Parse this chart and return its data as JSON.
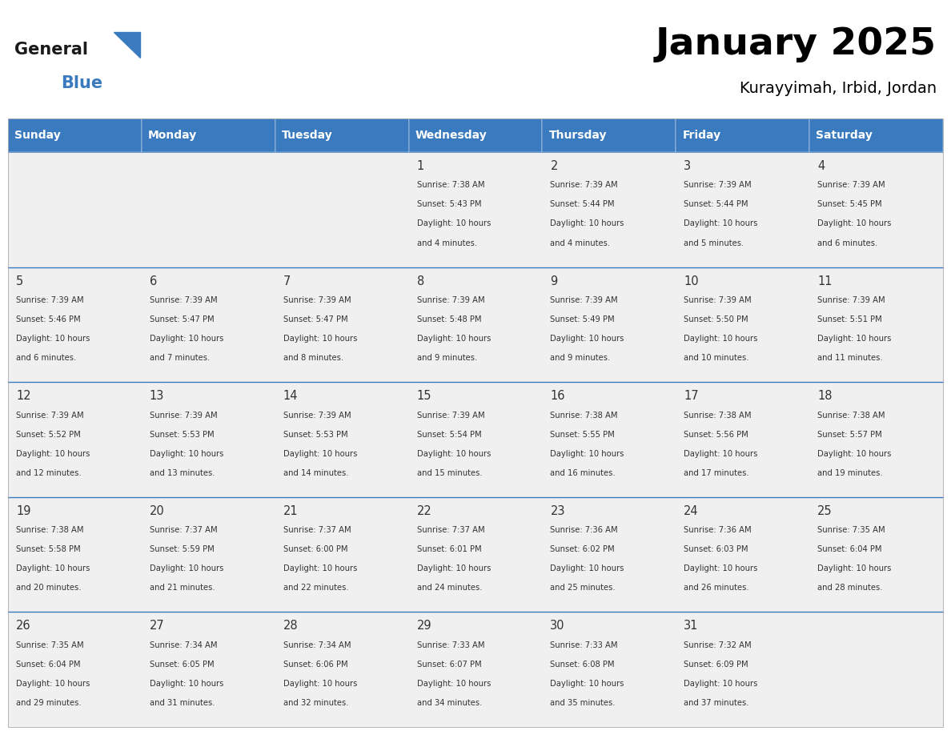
{
  "title": "January 2025",
  "subtitle": "Kurayyimah, Irbid, Jordan",
  "days_of_week": [
    "Sunday",
    "Monday",
    "Tuesday",
    "Wednesday",
    "Thursday",
    "Friday",
    "Saturday"
  ],
  "header_bg": "#3a7abf",
  "header_text": "#ffffff",
  "cell_bg_light": "#f0f0f0",
  "divider_color": "#3a7abf",
  "text_color": "#333333",
  "calendar_data": [
    [
      {
        "day": "",
        "sunrise": "",
        "sunset": "",
        "daylight": ""
      },
      {
        "day": "",
        "sunrise": "",
        "sunset": "",
        "daylight": ""
      },
      {
        "day": "",
        "sunrise": "",
        "sunset": "",
        "daylight": ""
      },
      {
        "day": "1",
        "sunrise": "Sunrise: 7:38 AM",
        "sunset": "Sunset: 5:43 PM",
        "daylight": "Daylight: 10 hours\nand 4 minutes."
      },
      {
        "day": "2",
        "sunrise": "Sunrise: 7:39 AM",
        "sunset": "Sunset: 5:44 PM",
        "daylight": "Daylight: 10 hours\nand 4 minutes."
      },
      {
        "day": "3",
        "sunrise": "Sunrise: 7:39 AM",
        "sunset": "Sunset: 5:44 PM",
        "daylight": "Daylight: 10 hours\nand 5 minutes."
      },
      {
        "day": "4",
        "sunrise": "Sunrise: 7:39 AM",
        "sunset": "Sunset: 5:45 PM",
        "daylight": "Daylight: 10 hours\nand 6 minutes."
      }
    ],
    [
      {
        "day": "5",
        "sunrise": "Sunrise: 7:39 AM",
        "sunset": "Sunset: 5:46 PM",
        "daylight": "Daylight: 10 hours\nand 6 minutes."
      },
      {
        "day": "6",
        "sunrise": "Sunrise: 7:39 AM",
        "sunset": "Sunset: 5:47 PM",
        "daylight": "Daylight: 10 hours\nand 7 minutes."
      },
      {
        "day": "7",
        "sunrise": "Sunrise: 7:39 AM",
        "sunset": "Sunset: 5:47 PM",
        "daylight": "Daylight: 10 hours\nand 8 minutes."
      },
      {
        "day": "8",
        "sunrise": "Sunrise: 7:39 AM",
        "sunset": "Sunset: 5:48 PM",
        "daylight": "Daylight: 10 hours\nand 9 minutes."
      },
      {
        "day": "9",
        "sunrise": "Sunrise: 7:39 AM",
        "sunset": "Sunset: 5:49 PM",
        "daylight": "Daylight: 10 hours\nand 9 minutes."
      },
      {
        "day": "10",
        "sunrise": "Sunrise: 7:39 AM",
        "sunset": "Sunset: 5:50 PM",
        "daylight": "Daylight: 10 hours\nand 10 minutes."
      },
      {
        "day": "11",
        "sunrise": "Sunrise: 7:39 AM",
        "sunset": "Sunset: 5:51 PM",
        "daylight": "Daylight: 10 hours\nand 11 minutes."
      }
    ],
    [
      {
        "day": "12",
        "sunrise": "Sunrise: 7:39 AM",
        "sunset": "Sunset: 5:52 PM",
        "daylight": "Daylight: 10 hours\nand 12 minutes."
      },
      {
        "day": "13",
        "sunrise": "Sunrise: 7:39 AM",
        "sunset": "Sunset: 5:53 PM",
        "daylight": "Daylight: 10 hours\nand 13 minutes."
      },
      {
        "day": "14",
        "sunrise": "Sunrise: 7:39 AM",
        "sunset": "Sunset: 5:53 PM",
        "daylight": "Daylight: 10 hours\nand 14 minutes."
      },
      {
        "day": "15",
        "sunrise": "Sunrise: 7:39 AM",
        "sunset": "Sunset: 5:54 PM",
        "daylight": "Daylight: 10 hours\nand 15 minutes."
      },
      {
        "day": "16",
        "sunrise": "Sunrise: 7:38 AM",
        "sunset": "Sunset: 5:55 PM",
        "daylight": "Daylight: 10 hours\nand 16 minutes."
      },
      {
        "day": "17",
        "sunrise": "Sunrise: 7:38 AM",
        "sunset": "Sunset: 5:56 PM",
        "daylight": "Daylight: 10 hours\nand 17 minutes."
      },
      {
        "day": "18",
        "sunrise": "Sunrise: 7:38 AM",
        "sunset": "Sunset: 5:57 PM",
        "daylight": "Daylight: 10 hours\nand 19 minutes."
      }
    ],
    [
      {
        "day": "19",
        "sunrise": "Sunrise: 7:38 AM",
        "sunset": "Sunset: 5:58 PM",
        "daylight": "Daylight: 10 hours\nand 20 minutes."
      },
      {
        "day": "20",
        "sunrise": "Sunrise: 7:37 AM",
        "sunset": "Sunset: 5:59 PM",
        "daylight": "Daylight: 10 hours\nand 21 minutes."
      },
      {
        "day": "21",
        "sunrise": "Sunrise: 7:37 AM",
        "sunset": "Sunset: 6:00 PM",
        "daylight": "Daylight: 10 hours\nand 22 minutes."
      },
      {
        "day": "22",
        "sunrise": "Sunrise: 7:37 AM",
        "sunset": "Sunset: 6:01 PM",
        "daylight": "Daylight: 10 hours\nand 24 minutes."
      },
      {
        "day": "23",
        "sunrise": "Sunrise: 7:36 AM",
        "sunset": "Sunset: 6:02 PM",
        "daylight": "Daylight: 10 hours\nand 25 minutes."
      },
      {
        "day": "24",
        "sunrise": "Sunrise: 7:36 AM",
        "sunset": "Sunset: 6:03 PM",
        "daylight": "Daylight: 10 hours\nand 26 minutes."
      },
      {
        "day": "25",
        "sunrise": "Sunrise: 7:35 AM",
        "sunset": "Sunset: 6:04 PM",
        "daylight": "Daylight: 10 hours\nand 28 minutes."
      }
    ],
    [
      {
        "day": "26",
        "sunrise": "Sunrise: 7:35 AM",
        "sunset": "Sunset: 6:04 PM",
        "daylight": "Daylight: 10 hours\nand 29 minutes."
      },
      {
        "day": "27",
        "sunrise": "Sunrise: 7:34 AM",
        "sunset": "Sunset: 6:05 PM",
        "daylight": "Daylight: 10 hours\nand 31 minutes."
      },
      {
        "day": "28",
        "sunrise": "Sunrise: 7:34 AM",
        "sunset": "Sunset: 6:06 PM",
        "daylight": "Daylight: 10 hours\nand 32 minutes."
      },
      {
        "day": "29",
        "sunrise": "Sunrise: 7:33 AM",
        "sunset": "Sunset: 6:07 PM",
        "daylight": "Daylight: 10 hours\nand 34 minutes."
      },
      {
        "day": "30",
        "sunrise": "Sunrise: 7:33 AM",
        "sunset": "Sunset: 6:08 PM",
        "daylight": "Daylight: 10 hours\nand 35 minutes."
      },
      {
        "day": "31",
        "sunrise": "Sunrise: 7:32 AM",
        "sunset": "Sunset: 6:09 PM",
        "daylight": "Daylight: 10 hours\nand 37 minutes."
      },
      {
        "day": "",
        "sunrise": "",
        "sunset": "",
        "daylight": ""
      }
    ]
  ],
  "logo_color_general": "#1a1a1a",
  "logo_color_blue": "#3a7abf",
  "fig_width": 11.88,
  "fig_height": 9.18,
  "dpi": 100
}
